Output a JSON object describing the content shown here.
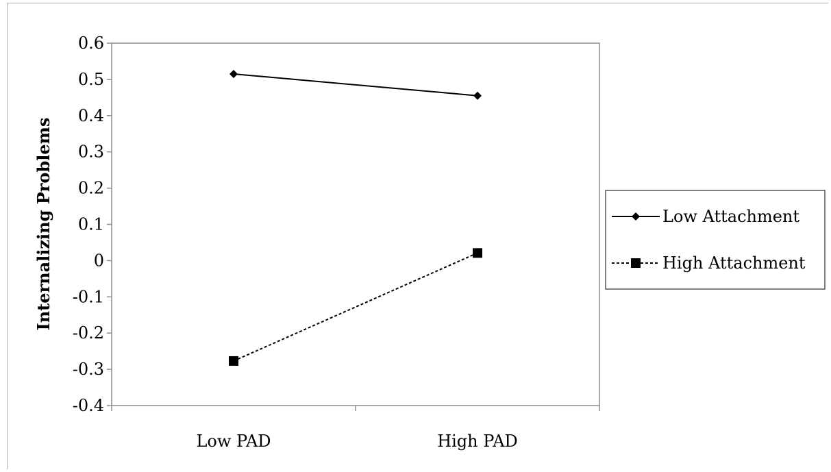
{
  "chart_data": {
    "type": "line",
    "title": "",
    "xlabel": "",
    "ylabel": "Internalizing Problems",
    "categories": [
      "Low PAD",
      "High PAD"
    ],
    "ylim": [
      -0.4,
      0.6
    ],
    "yticks": [
      "0.6",
      "0.5",
      "0.4",
      "0.3",
      "0.2",
      "0.1",
      "0",
      "-0.1",
      "-0.2",
      "-0.3",
      "-0.4"
    ],
    "grid": false,
    "legend_position": "right",
    "series": [
      {
        "name": "Low Attachment",
        "values": [
          0.515,
          0.455
        ],
        "marker": "diamond",
        "line_style": "solid",
        "color": "#000000"
      },
      {
        "name": "High Attachment",
        "values": [
          -0.277,
          0.021
        ],
        "marker": "square",
        "line_style": "dashed",
        "color": "#000000"
      }
    ]
  }
}
